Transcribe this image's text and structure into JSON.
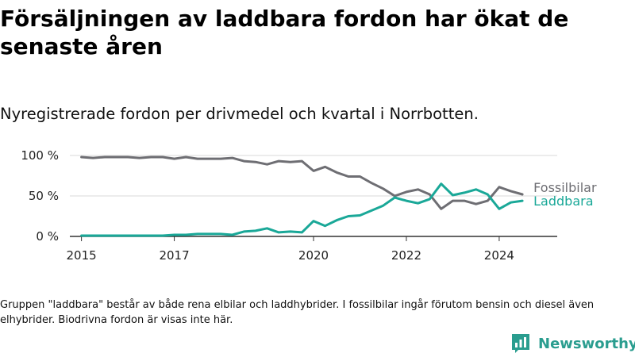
{
  "header": {
    "title": "Försäljningen av laddbara fordon har ökat de senaste åren",
    "subtitle": "Nyregistrerade fordon per drivmedel och kvartal i Norrbotten."
  },
  "footnote": "Gruppen \"laddbara\" består av både rena elbilar och laddhybrider. I fossilbilar ingår förutom bensin och diesel även elhybrider. Biodrivna fordon är visas inte här.",
  "brand": {
    "name": "Newsworthy",
    "color": "#2a9d8f"
  },
  "chart_data": {
    "type": "line",
    "title": "Försäljningen av laddbara fordon har ökat de senaste åren",
    "subtitle": "Nyregistrerade fordon per drivmedel och kvartal i Norrbotten.",
    "xlabel": "",
    "ylabel": "",
    "x_unit": "year (quarterly observations)",
    "xlim": [
      2014.75,
      2025.25
    ],
    "ylim": [
      0,
      100
    ],
    "x_ticks": [
      2015,
      2017,
      2020,
      2022,
      2024
    ],
    "x_tick_labels": [
      "2015",
      "2017",
      "2020",
      "2022",
      "2024"
    ],
    "y_ticks": [
      0,
      50,
      100
    ],
    "y_tick_labels": [
      "0 %",
      "50 %",
      "100 %"
    ],
    "grid": "horizontal",
    "x": [
      2015.0,
      2015.25,
      2015.5,
      2015.75,
      2016.0,
      2016.25,
      2016.5,
      2016.75,
      2017.0,
      2017.25,
      2017.5,
      2017.75,
      2018.0,
      2018.25,
      2018.5,
      2018.75,
      2019.0,
      2019.25,
      2019.5,
      2019.75,
      2020.0,
      2020.25,
      2020.5,
      2020.75,
      2021.0,
      2021.25,
      2021.5,
      2021.75,
      2022.0,
      2022.25,
      2022.5,
      2022.75,
      2023.0,
      2023.25,
      2023.5,
      2023.75,
      2024.0,
      2024.25,
      2024.5
    ],
    "series": [
      {
        "name": "Fossilbilar",
        "color": "#6e6e73",
        "values": [
          98,
          97,
          98,
          98,
          98,
          97,
          98,
          98,
          96,
          98,
          96,
          96,
          96,
          97,
          93,
          92,
          89,
          93,
          92,
          93,
          81,
          86,
          79,
          74,
          74,
          66,
          59,
          50,
          55,
          58,
          52,
          34,
          44,
          44,
          40,
          44,
          61,
          56,
          52
        ]
      },
      {
        "name": "Laddbara",
        "color": "#1aa898",
        "values": [
          1,
          1,
          1,
          1,
          1,
          1,
          1,
          1,
          2,
          2,
          3,
          3,
          3,
          2,
          6,
          7,
          10,
          5,
          6,
          5,
          19,
          13,
          20,
          25,
          26,
          32,
          38,
          48,
          44,
          41,
          46,
          65,
          51,
          54,
          58,
          52,
          34,
          42,
          44
        ]
      }
    ]
  }
}
